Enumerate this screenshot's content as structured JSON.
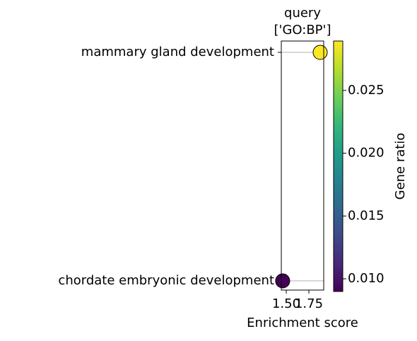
{
  "chart_data": {
    "type": "scatter",
    "title": [
      "query",
      "['GO:BP']"
    ],
    "categories": [
      "chordate embryonic development",
      "mammary gland development"
    ],
    "x": [
      1.46,
      1.875
    ],
    "color_values": [
      0.009,
      0.0289
    ],
    "xlabel": "Enrichment score",
    "xlim": [
      1.445,
      1.914
    ],
    "xticks": [
      {
        "value": 1.5,
        "label": "1.50"
      },
      {
        "value": 1.75,
        "label": "1.75"
      }
    ],
    "grid": true,
    "colormap": "viridis",
    "colorbar": {
      "label": "Gene ratio",
      "lim": [
        0.00899,
        0.02893
      ],
      "ticks": [
        {
          "value": 0.01,
          "label": "0.010"
        },
        {
          "value": 0.015,
          "label": "0.015"
        },
        {
          "value": 0.02,
          "label": "0.020"
        },
        {
          "value": 0.025,
          "label": "0.025"
        }
      ]
    }
  }
}
